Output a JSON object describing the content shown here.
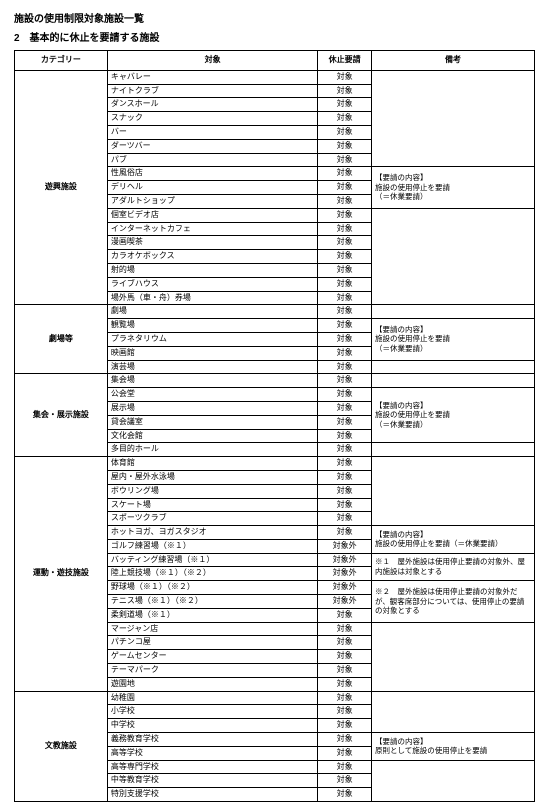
{
  "title_main": "施設の使用制限対象施設一覧",
  "title_sub": "2　基本的に休止を要請する施設",
  "headers": {
    "category": "カテゴリー",
    "target": "対象",
    "request": "休止要請",
    "note": "備考"
  },
  "req_values": {
    "target": "対象",
    "target_out": "対象外"
  },
  "sections": [
    {
      "category": "遊興施設",
      "note": "【要請の内容】\n施設の使用停止を要請\n（＝休業要請）",
      "note_size": 3,
      "note_start": 7,
      "rows": [
        {
          "t": "キャバレー",
          "r": "target"
        },
        {
          "t": "ナイトクラブ",
          "r": "target"
        },
        {
          "t": "ダンスホール",
          "r": "target"
        },
        {
          "t": "スナック",
          "r": "target"
        },
        {
          "t": "バー",
          "r": "target"
        },
        {
          "t": "ダーツバー",
          "r": "target"
        },
        {
          "t": "パブ",
          "r": "target"
        },
        {
          "t": "性風俗店",
          "r": "target"
        },
        {
          "t": "デリヘル",
          "r": "target"
        },
        {
          "t": "アダルトショップ",
          "r": "target"
        },
        {
          "t": "個室ビデオ店",
          "r": "target"
        },
        {
          "t": "インターネットカフェ",
          "r": "target"
        },
        {
          "t": "漫画喫茶",
          "r": "target"
        },
        {
          "t": "カラオケボックス",
          "r": "target"
        },
        {
          "t": "射的場",
          "r": "target"
        },
        {
          "t": "ライブハウス",
          "r": "target"
        },
        {
          "t": "場外馬（車・舟）券場",
          "r": "target"
        }
      ]
    },
    {
      "category": "劇場等",
      "note": "【要請の内容】\n施設の使用停止を要請\n（＝休業要請）",
      "note_size": 3,
      "note_start": 1,
      "rows": [
        {
          "t": "劇場",
          "r": "target"
        },
        {
          "t": "観覧場",
          "r": "target"
        },
        {
          "t": "プラネタリウム",
          "r": "target"
        },
        {
          "t": "映画館",
          "r": "target"
        },
        {
          "t": "演芸場",
          "r": "target"
        }
      ]
    },
    {
      "category": "集会・展示施設",
      "note": "【要請の内容】\n施設の使用停止を要請\n（＝休業要請）",
      "note_size": 4,
      "note_start": 1,
      "rows": [
        {
          "t": "集会場",
          "r": "target"
        },
        {
          "t": "公会堂",
          "r": "target"
        },
        {
          "t": "展示場",
          "r": "target"
        },
        {
          "t": "貸会議室",
          "r": "target"
        },
        {
          "t": "文化会館",
          "r": "target"
        },
        {
          "t": "多目的ホール",
          "r": "target"
        }
      ]
    },
    {
      "category": "運動・遊技施設",
      "note_blocks": [
        {
          "start": 5,
          "size": 2,
          "text": "【要請の内容】\n施設の使用停止を要請（＝休業要請）"
        },
        {
          "start": 7,
          "size": 2,
          "text": "※１　屋外施設は使用停止要請の対象外、屋内施設は対象とする"
        },
        {
          "start": 9,
          "size": 3,
          "text": "※２　屋外施設は使用停止要請の対象外だが、観客席部分については、使用停止の要請の対象とする"
        }
      ],
      "rows": [
        {
          "t": "体育館",
          "r": "target"
        },
        {
          "t": "屋内・屋外水泳場",
          "r": "target"
        },
        {
          "t": "ボウリング場",
          "r": "target"
        },
        {
          "t": "スケート場",
          "r": "target"
        },
        {
          "t": "スポーツクラブ",
          "r": "target"
        },
        {
          "t": "ホットヨガ、ヨガスタジオ",
          "r": "target"
        },
        {
          "t": "ゴルフ練習場（※１）",
          "r": "target_out"
        },
        {
          "t": "バッティング練習場（※１）",
          "r": "target_out"
        },
        {
          "t": "陸上競技場（※１）（※２）",
          "r": "target_out"
        },
        {
          "t": "野球場（※１）（※２）",
          "r": "target_out"
        },
        {
          "t": "テニス場（※１）（※２）",
          "r": "target_out"
        },
        {
          "t": "柔剣道場（※１）",
          "r": "target"
        },
        {
          "t": "マージャン店",
          "r": "target"
        },
        {
          "t": "パチンコ屋",
          "r": "target"
        },
        {
          "t": "ゲームセンター",
          "r": "target"
        },
        {
          "t": "テーマパーク",
          "r": "target"
        },
        {
          "t": "遊園地",
          "r": "target"
        }
      ]
    },
    {
      "category": "文教施設",
      "note": "【要請の内容】\n原則として施設の使用停止を要請",
      "note_size": 2,
      "note_start": 3,
      "rows": [
        {
          "t": "幼稚園",
          "r": "target"
        },
        {
          "t": "小学校",
          "r": "target"
        },
        {
          "t": "中学校",
          "r": "target"
        },
        {
          "t": "義務教育学校",
          "r": "target"
        },
        {
          "t": "高等学校",
          "r": "target"
        },
        {
          "t": "高等専門学校",
          "r": "target"
        },
        {
          "t": "中等教育学校",
          "r": "target"
        },
        {
          "t": "特別支援学校",
          "r": "target"
        }
      ]
    }
  ]
}
